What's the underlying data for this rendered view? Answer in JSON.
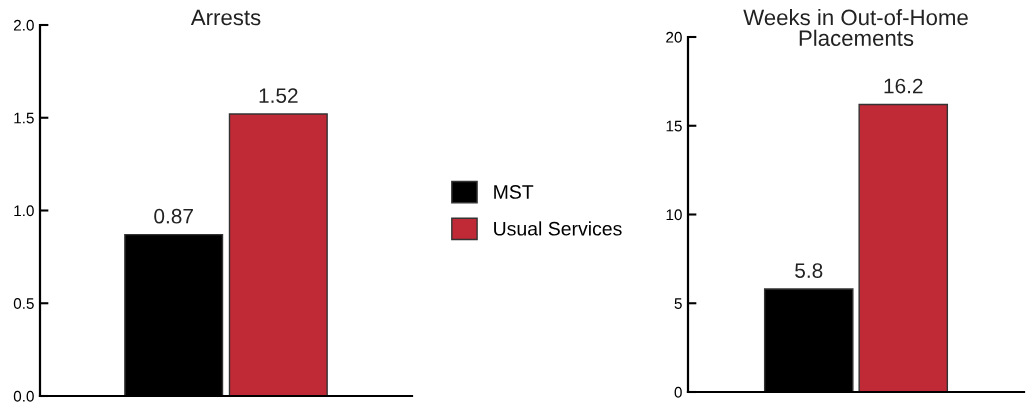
{
  "chart_data": [
    {
      "type": "bar",
      "title": "Arrests",
      "categories": [
        null
      ],
      "series": [
        {
          "name": "MST",
          "color": "#000000",
          "values": [
            0.87
          ]
        },
        {
          "name": "Usual Services",
          "color": "#c02a37",
          "values": [
            1.52
          ]
        }
      ],
      "ylim": [
        0,
        2
      ],
      "yticks": [
        {
          "value": 0,
          "label": "0.0"
        },
        {
          "value": 0.5,
          "label": "0.5"
        },
        {
          "value": 1,
          "label": "1.0"
        },
        {
          "value": 1.5,
          "label": "1.5"
        },
        {
          "value": 2,
          "label": "2.0"
        }
      ],
      "data_labels": true,
      "legend": "right",
      "grid": false
    },
    {
      "type": "bar",
      "title": "Weeks in Out-of-Home Placements",
      "categories": [
        null
      ],
      "series": [
        {
          "color": "#000000",
          "values": [
            5.8
          ]
        },
        {
          "color": "#c02a37",
          "values": [
            16.2
          ]
        }
      ],
      "ylim": [
        0,
        20
      ],
      "yticks": [
        0,
        5,
        10,
        15,
        20
      ],
      "data_labels": true,
      "grid": false
    }
  ]
}
